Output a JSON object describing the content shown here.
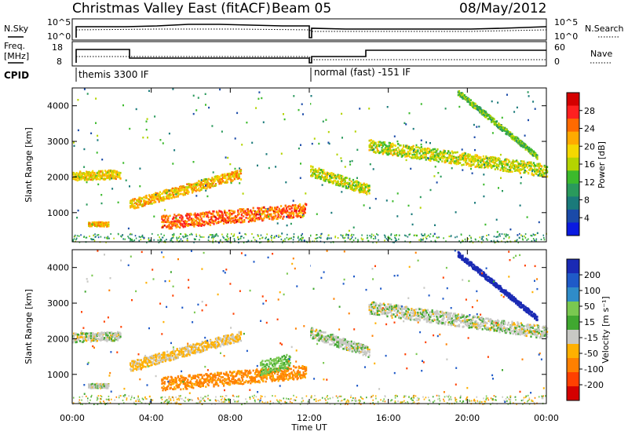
{
  "header": {
    "station": "Christmas Valley East (fitACF)",
    "beam": "Beam 05",
    "date": "08/May/2012"
  },
  "status_panels": {
    "nsky_label": "N.Sky",
    "nsearch_label": "N.Search",
    "freq_label_line1": "Freq.",
    "freq_label_line2": "[MHz]",
    "nave_label": "Nave",
    "cpid_label": "CPID",
    "nsky_ticks": [
      "10^5",
      "10^0"
    ],
    "nsearch_ticks": [
      "10^5",
      "10^0"
    ],
    "freq_ticks": [
      "18",
      "8"
    ],
    "nave_ticks": [
      "60",
      "0"
    ],
    "cpid_segments": [
      {
        "label": "themis 3300 IF",
        "start_hour": 0.0
      },
      {
        "label": "normal (fast) -151 IF",
        "start_hour": 12.0
      }
    ]
  },
  "colorbars": {
    "power": {
      "label": "Power [dB]",
      "ticks": [
        "28",
        "24",
        "20",
        "16",
        "12",
        "8",
        "4"
      ],
      "colors": [
        "#d40000",
        "#ff2020",
        "#ff6a00",
        "#ffaa00",
        "#f5d800",
        "#b4d400",
        "#3cba2c",
        "#2a9a5c",
        "#1a7a7a",
        "#1a4aa8",
        "#0a1ae0"
      ]
    },
    "velocity": {
      "label": "Velocity [m s⁻¹]",
      "ticks": [
        "200",
        "100",
        "50",
        "15",
        "-15",
        "-50",
        "-100",
        "-200"
      ],
      "colors": [
        "#1a2ab4",
        "#1f5ac8",
        "#2f8cc8",
        "#7ac850",
        "#40a830",
        "#c8c8c4",
        "#ffb000",
        "#ff8000",
        "#ff4000",
        "#d40000"
      ]
    }
  },
  "chart_data": [
    {
      "type": "heatmap",
      "panel": "power",
      "title": "Christmas Valley East (fitACF) Beam 05 08/May/2012",
      "xlabel": "Time UT",
      "ylabel": "Slant Range [km]",
      "xlim": [
        0,
        24
      ],
      "ylim": [
        180,
        4500
      ],
      "x_tick_labels": [
        "00:00",
        "04:00",
        "08:00",
        "12:00",
        "16:00",
        "20:00",
        "00:00"
      ],
      "y_tick_labels": [
        "1000",
        "2000",
        "3000",
        "4000"
      ],
      "colorbar_label": "Power [dB]",
      "colorbar_ticks": [
        4,
        8,
        12,
        16,
        20,
        24,
        28
      ],
      "scatter_features": [
        {
          "name": "band_early",
          "t_start": 0.0,
          "t_end": 2.4,
          "r_start": 2050,
          "r_end": 2100,
          "width_km": 250,
          "power_db": 20
        },
        {
          "name": "band_near",
          "t_start": 0.8,
          "t_end": 1.8,
          "r_start": 700,
          "r_end": 700,
          "width_km": 120,
          "power_db": 22
        },
        {
          "name": "band_rising",
          "t_start": 2.9,
          "t_end": 8.5,
          "r_start": 1250,
          "r_end": 2100,
          "width_km": 280,
          "power_db": 22
        },
        {
          "name": "band_main",
          "t_start": 4.5,
          "t_end": 11.8,
          "r_start": 750,
          "r_end": 1100,
          "width_km": 380,
          "power_db": 26
        },
        {
          "name": "band_morning",
          "t_start": 12.0,
          "t_end": 15.0,
          "r_start": 2200,
          "r_end": 1650,
          "width_km": 300,
          "power_db": 18
        },
        {
          "name": "band_afternoon",
          "t_start": 15.0,
          "t_end": 24.0,
          "r_start": 2900,
          "r_end": 2200,
          "width_km": 350,
          "power_db": 18
        },
        {
          "name": "band_descending",
          "t_start": 19.5,
          "t_end": 23.5,
          "r_start": 4400,
          "r_end": 2600,
          "width_km": 150,
          "power_db": 14
        }
      ]
    },
    {
      "type": "heatmap",
      "panel": "velocity",
      "xlabel": "Time UT",
      "ylabel": "Slant Range [km]",
      "xlim": [
        0,
        24
      ],
      "ylim": [
        180,
        4500
      ],
      "x_tick_labels": [
        "00:00",
        "04:00",
        "08:00",
        "12:00",
        "16:00",
        "20:00",
        "00:00"
      ],
      "y_tick_labels": [
        "1000",
        "2000",
        "3000",
        "4000"
      ],
      "colorbar_label": "Velocity [m s⁻¹]",
      "colorbar_ticks": [
        -200,
        -100,
        -50,
        -15,
        15,
        50,
        100,
        200
      ],
      "scatter_features": [
        {
          "name": "band_early",
          "t_start": 0.0,
          "t_end": 2.4,
          "r_start": 2050,
          "r_end": 2100,
          "width_km": 250,
          "velocity": 0
        },
        {
          "name": "band_near",
          "t_start": 0.8,
          "t_end": 1.8,
          "r_start": 700,
          "r_end": 700,
          "width_km": 120,
          "velocity": 0
        },
        {
          "name": "band_rising",
          "t_start": 2.9,
          "t_end": 8.5,
          "r_start": 1250,
          "r_end": 2100,
          "width_km": 280,
          "velocity": -20
        },
        {
          "name": "band_main",
          "t_start": 4.5,
          "t_end": 11.8,
          "r_start": 750,
          "r_end": 1100,
          "width_km": 380,
          "velocity": -60
        },
        {
          "name": "band_main_late",
          "t_start": 9.5,
          "t_end": 11.0,
          "r_start": 1200,
          "r_end": 1400,
          "width_km": 400,
          "velocity": 40
        },
        {
          "name": "band_morning",
          "t_start": 12.0,
          "t_end": 15.0,
          "r_start": 2200,
          "r_end": 1650,
          "width_km": 300,
          "velocity": 0
        },
        {
          "name": "band_afternoon",
          "t_start": 15.0,
          "t_end": 24.0,
          "r_start": 2900,
          "r_end": 2200,
          "width_km": 350,
          "velocity": 0
        },
        {
          "name": "band_descending",
          "t_start": 19.5,
          "t_end": 23.5,
          "r_start": 4400,
          "r_end": 2600,
          "width_km": 150,
          "velocity": 200
        }
      ]
    }
  ]
}
